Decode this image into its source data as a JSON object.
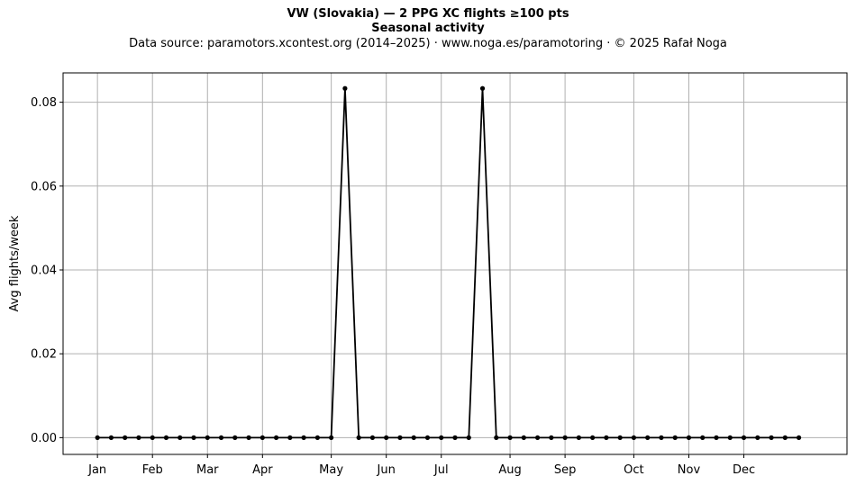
{
  "chart_data": {
    "type": "line",
    "title": "VW (Slovakia)  —  2 PPG XC flights ≥100 pts",
    "subtitle": "Seasonal activity",
    "source": "Data source: paramotors.xcontest.org (2014–2025)  ·  www.noga.es/paramotoring  ·  © 2025 Rafał Noga",
    "xlabel": "",
    "ylabel": "Avg flights/week",
    "ylim": [
      -0.004,
      0.087
    ],
    "xlim": [
      -2.5,
      54.5
    ],
    "yticks": [
      0.0,
      0.02,
      0.04,
      0.06,
      0.08
    ],
    "ytick_labels": [
      "0.00",
      "0.02",
      "0.04",
      "0.06",
      "0.08"
    ],
    "xticks": [
      0,
      4,
      8,
      12,
      17,
      21,
      25,
      30,
      34,
      39,
      43,
      47
    ],
    "xtick_labels": [
      "Jan",
      "Feb",
      "Mar",
      "Apr",
      "May",
      "Jun",
      "Jul",
      "Aug",
      "Sep",
      "Oct",
      "Nov",
      "Dec"
    ],
    "grid": true,
    "series": [
      {
        "color": "#000000",
        "x": [
          0,
          1,
          2,
          3,
          4,
          5,
          6,
          7,
          8,
          9,
          10,
          11,
          12,
          13,
          14,
          15,
          16,
          17,
          18,
          19,
          20,
          21,
          22,
          23,
          24,
          25,
          26,
          27,
          28,
          29,
          30,
          31,
          32,
          33,
          34,
          35,
          36,
          37,
          38,
          39,
          40,
          41,
          42,
          43,
          44,
          45,
          46,
          47,
          48,
          49,
          50,
          51
        ],
        "values": [
          0,
          0,
          0,
          0,
          0,
          0,
          0,
          0,
          0,
          0,
          0,
          0,
          0,
          0,
          0,
          0,
          0,
          0,
          0.0833,
          0,
          0,
          0,
          0,
          0,
          0,
          0,
          0,
          0,
          0.0833,
          0,
          0,
          0,
          0,
          0,
          0,
          0,
          0,
          0,
          0,
          0,
          0,
          0,
          0,
          0,
          0,
          0,
          0,
          0,
          0,
          0,
          0,
          0
        ]
      }
    ]
  }
}
